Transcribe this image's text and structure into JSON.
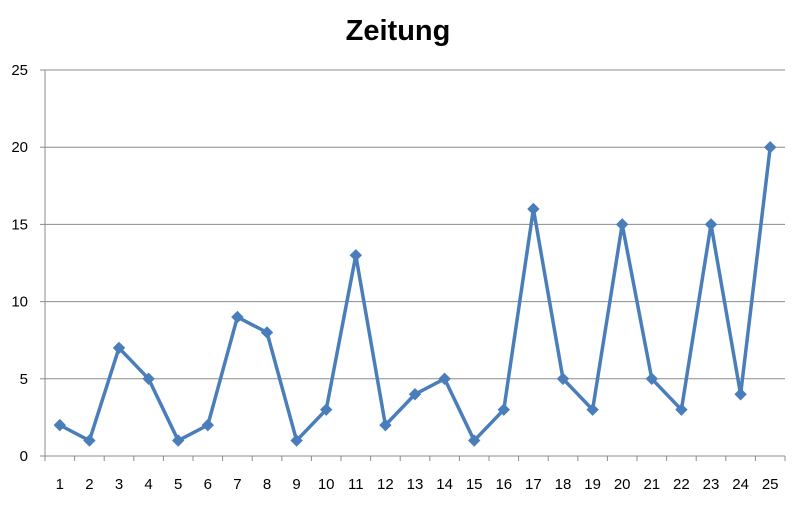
{
  "chart_data": {
    "type": "line",
    "title": "Zeitung",
    "xlabel": "",
    "ylabel": "",
    "categories": [
      "1",
      "2",
      "3",
      "4",
      "5",
      "6",
      "7",
      "8",
      "9",
      "10",
      "11",
      "12",
      "13",
      "14",
      "15",
      "16",
      "17",
      "18",
      "19",
      "20",
      "21",
      "22",
      "23",
      "24",
      "25"
    ],
    "series": [
      {
        "values": [
          2,
          1,
          7,
          5,
          1,
          2,
          9,
          8,
          1,
          3,
          13,
          2,
          4,
          5,
          1,
          3,
          16,
          5,
          3,
          15,
          5,
          3,
          15,
          4,
          20
        ]
      }
    ],
    "ylim": [
      0,
      25
    ],
    "yticks": [
      "0",
      "5",
      "10",
      "15",
      "20",
      "25"
    ],
    "grid": true,
    "legend": "none",
    "marker": "diamond",
    "colors": {
      "series": "#4a7ebb",
      "grid": "#8c8c8c"
    }
  }
}
